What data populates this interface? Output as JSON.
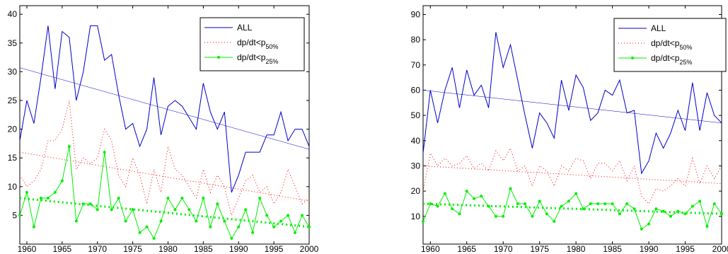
{
  "chart_data": [
    {
      "type": "line",
      "x": [
        1959,
        1960,
        1961,
        1962,
        1963,
        1964,
        1965,
        1966,
        1967,
        1968,
        1969,
        1970,
        1971,
        1972,
        1973,
        1974,
        1975,
        1976,
        1977,
        1978,
        1979,
        1980,
        1981,
        1982,
        1983,
        1984,
        1985,
        1986,
        1987,
        1988,
        1989,
        1990,
        1991,
        1992,
        1993,
        1994,
        1995,
        1996,
        1997,
        1998,
        1999,
        2000
      ],
      "xlim": [
        1959,
        2000
      ],
      "xticks": [
        1960,
        1965,
        1970,
        1975,
        1980,
        1985,
        1990,
        1995,
        2000
      ],
      "ylim": [
        0,
        41.5
      ],
      "yticks": [
        5,
        10,
        15,
        20,
        25,
        30,
        35,
        40
      ],
      "series": [
        {
          "name": "ALL",
          "color": "#0000cc",
          "style": "solid",
          "values": [
            18,
            25,
            21,
            29,
            38,
            27,
            37,
            36,
            25,
            30,
            38,
            38,
            32,
            33,
            26,
            20,
            21,
            17,
            20,
            29,
            19,
            24,
            25,
            24,
            22,
            20,
            28,
            23,
            20,
            23,
            9,
            12,
            16,
            16,
            16,
            19,
            19,
            23,
            18,
            20,
            20,
            17
          ],
          "trend": [
            30.7,
            16.5
          ]
        },
        {
          "name": "dp/dt<p",
          "name_sub": "50%",
          "color": "#ff0000",
          "style": "dotted",
          "values": [
            12,
            10,
            11,
            13,
            18,
            18,
            20,
            25,
            13,
            15,
            14,
            15,
            20,
            18,
            12,
            10,
            15,
            12,
            7,
            13,
            9,
            17,
            13,
            12,
            10,
            8,
            13,
            9,
            12,
            10,
            5,
            8,
            11,
            12,
            9,
            10,
            7,
            9,
            13,
            10,
            7,
            8
          ],
          "trend": [
            16,
            7.5
          ]
        },
        {
          "name": "dp/dt<p",
          "name_sub": "25%",
          "color": "#00ee00",
          "style": "marker",
          "values": [
            5,
            9,
            3,
            8,
            8,
            9,
            11,
            17,
            4,
            7,
            7,
            6,
            16,
            6,
            8,
            4,
            6,
            2,
            3,
            1,
            4,
            8,
            6,
            8,
            6,
            4,
            8,
            3,
            7,
            4,
            1,
            3,
            6,
            2,
            8,
            5,
            3,
            4,
            5,
            2,
            5,
            3
          ],
          "trend": [
            8,
            3
          ]
        }
      ]
    },
    {
      "type": "line",
      "x": [
        1959,
        1960,
        1961,
        1962,
        1963,
        1964,
        1965,
        1966,
        1967,
        1968,
        1969,
        1970,
        1971,
        1972,
        1973,
        1974,
        1975,
        1976,
        1977,
        1978,
        1979,
        1980,
        1981,
        1982,
        1983,
        1984,
        1985,
        1986,
        1987,
        1988,
        1989,
        1990,
        1991,
        1992,
        1993,
        1994,
        1995,
        1996,
        1997,
        1998,
        1999,
        2000
      ],
      "xlim": [
        1959,
        2000
      ],
      "xticks": [
        1960,
        1965,
        1970,
        1975,
        1980,
        1985,
        1990,
        1995,
        2000
      ],
      "ylim": [
        -1,
        93.5
      ],
      "yticks": [
        10,
        20,
        30,
        40,
        50,
        60,
        70,
        80,
        90
      ],
      "series": [
        {
          "name": "ALL",
          "color": "#0000cc",
          "style": "solid",
          "values": [
            35,
            60,
            47,
            60,
            69,
            53,
            68,
            58,
            62,
            53,
            83,
            69,
            78,
            64,
            50,
            37,
            51,
            47,
            41,
            64,
            52,
            66,
            61,
            48,
            51,
            60,
            58,
            64,
            51,
            52,
            27,
            32,
            43,
            37,
            43,
            52,
            44,
            63,
            44,
            59,
            50,
            47
          ],
          "trend": [
            60,
            47
          ]
        },
        {
          "name": "dp/dt<p",
          "name_sub": "50%",
          "color": "#ff0000",
          "style": "dotted",
          "values": [
            20,
            35,
            30,
            33,
            30,
            31,
            34,
            29,
            31,
            28,
            36,
            32,
            37,
            28,
            30,
            22,
            30,
            28,
            22,
            30,
            28,
            33,
            32,
            25,
            31,
            31,
            28,
            32,
            24,
            30,
            18,
            15,
            21,
            20,
            22,
            25,
            22,
            33,
            23,
            30,
            25,
            30
          ],
          "trend": [
            30,
            23
          ]
        },
        {
          "name": "dp/dt<p",
          "name_sub": "25%",
          "color": "#00ee00",
          "style": "marker",
          "values": [
            8,
            15,
            14,
            19,
            13,
            11,
            20,
            17,
            18,
            14,
            10,
            10,
            21,
            15,
            15,
            10,
            16,
            11,
            8,
            14,
            16,
            19,
            13,
            15,
            15,
            15,
            15,
            11,
            15,
            13,
            5,
            7,
            13,
            12,
            10,
            12,
            11,
            14,
            16,
            6,
            15,
            11
          ],
          "trend": [
            15,
            11
          ]
        }
      ]
    }
  ]
}
